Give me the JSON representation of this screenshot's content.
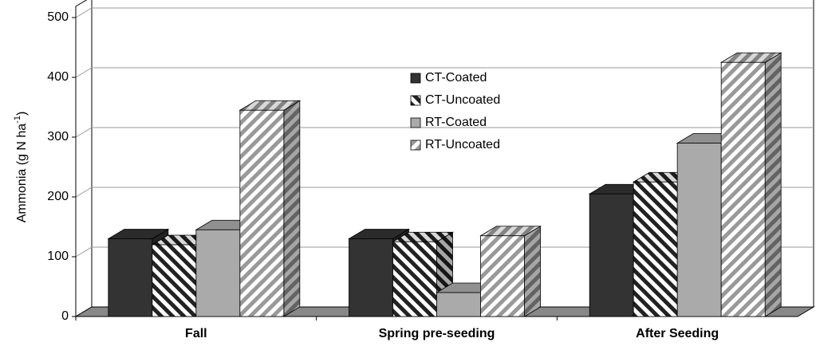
{
  "chart_data": {
    "type": "bar3d",
    "ylabel": {
      "text": "Ammonia (g N ha",
      "sup": "-1",
      "end": ")"
    },
    "categories": [
      "Fall",
      "Spring pre-seeding",
      "After Seeding"
    ],
    "series": [
      {
        "name": "CT-Coated",
        "color": "#333333",
        "hatch": false,
        "values": [
          130,
          130,
          205
        ]
      },
      {
        "name": "CT-Uncoated",
        "color": "#222222",
        "hatch": "back",
        "values": [
          120,
          125,
          225
        ]
      },
      {
        "name": "RT-Coated",
        "color": "#aaaaaa",
        "hatch": false,
        "values": [
          145,
          40,
          290
        ]
      },
      {
        "name": "RT-Uncoated",
        "color": "#999999",
        "hatch": "forward",
        "values": [
          345,
          135,
          425
        ]
      }
    ],
    "ylim": [
      0,
      500
    ],
    "yticks": [
      0,
      100,
      200,
      300,
      400,
      500
    ],
    "grid": true
  }
}
